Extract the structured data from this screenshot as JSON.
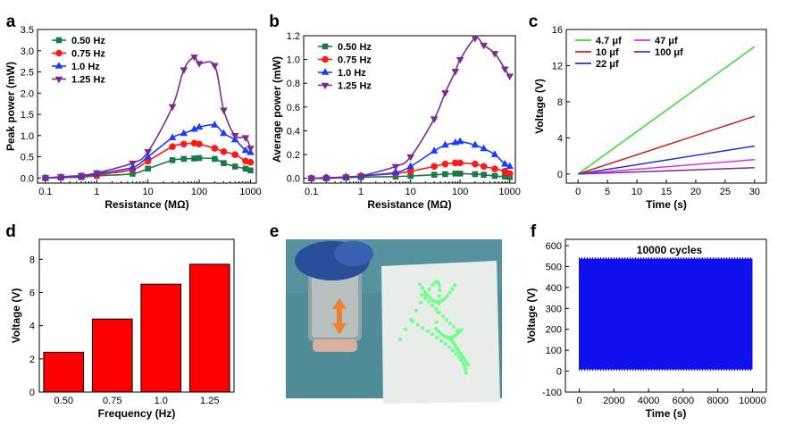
{
  "panel_labels": [
    "a",
    "b",
    "c",
    "d",
    "e",
    "f"
  ],
  "chart_data": [
    {
      "id": "a",
      "type": "line",
      "xlabel": "Resistance (MΩ)",
      "ylabel": "Peak power (mW)",
      "xscale": "log",
      "xlim": [
        0.07,
        1300
      ],
      "ylim": [
        -0.12,
        3.5
      ],
      "xticks": [
        0.1,
        1,
        10,
        100,
        1000
      ],
      "xtick_labels": [
        "0.1",
        "1",
        "10",
        "100",
        "1000"
      ],
      "yticks": [
        0.0,
        0.5,
        1.0,
        1.5,
        2.0,
        2.5,
        3.0,
        3.5
      ],
      "ytick_labels": [
        "0.0",
        "0.5",
        "1.0",
        "1.5",
        "2.0",
        "2.5",
        "3.0",
        "3.5"
      ],
      "legend_position": "top-left",
      "x": [
        0.1,
        0.2,
        0.5,
        1,
        5,
        10,
        30,
        50,
        80,
        100,
        200,
        300,
        500,
        800,
        1000
      ],
      "series": [
        {
          "name": "0.50 Hz",
          "color": "#1a7a4a",
          "marker": "square",
          "values": [
            0.0,
            0.01,
            0.02,
            0.05,
            0.1,
            0.22,
            0.42,
            0.45,
            0.46,
            0.47,
            0.45,
            0.35,
            0.27,
            0.22,
            0.18
          ]
        },
        {
          "name": "0.75 Hz",
          "color": "#ff1a1a",
          "marker": "circle",
          "values": [
            0.0,
            0.01,
            0.03,
            0.07,
            0.2,
            0.4,
            0.74,
            0.8,
            0.82,
            0.8,
            0.7,
            0.62,
            0.55,
            0.4,
            0.37
          ]
        },
        {
          "name": "1.0 Hz",
          "color": "#1a3cff",
          "marker": "triangle-up",
          "values": [
            0.0,
            0.02,
            0.04,
            0.1,
            0.25,
            0.5,
            0.95,
            1.05,
            1.15,
            1.2,
            1.25,
            1.05,
            0.9,
            0.65,
            0.6
          ]
        },
        {
          "name": "1.25 Hz",
          "color": "#7b2d8e",
          "marker": "triangle-down",
          "values": [
            0.0,
            0.03,
            0.06,
            0.12,
            0.35,
            0.62,
            1.68,
            2.55,
            2.85,
            2.7,
            2.65,
            1.6,
            1.0,
            0.95,
            0.7
          ]
        }
      ]
    },
    {
      "id": "b",
      "type": "line",
      "xlabel": "Resistance (MΩ)",
      "ylabel": "Average power (mW)",
      "xscale": "log",
      "xlim": [
        0.07,
        1300
      ],
      "ylim": [
        -0.04,
        1.2
      ],
      "xticks": [
        0.1,
        1,
        10,
        100,
        1000
      ],
      "xtick_labels": [
        "0.1",
        "1",
        "10",
        "100",
        "1000"
      ],
      "yticks": [
        0.0,
        0.2,
        0.4,
        0.6,
        0.8,
        1.0,
        1.2
      ],
      "ytick_labels": [
        "0.0",
        "0.2",
        "0.4",
        "0.6",
        "0.8",
        "1.0",
        "1.2"
      ],
      "legend_position": "top-left",
      "x": [
        0.1,
        0.2,
        0.5,
        1,
        5,
        10,
        30,
        50,
        80,
        100,
        200,
        300,
        500,
        800,
        1000
      ],
      "series": [
        {
          "name": "0.50 Hz",
          "color": "#1a7a4a",
          "marker": "square",
          "values": [
            0.0,
            0.0,
            0.005,
            0.01,
            0.015,
            0.02,
            0.03,
            0.035,
            0.04,
            0.04,
            0.035,
            0.03,
            0.02,
            0.015,
            0.01
          ]
        },
        {
          "name": "0.75 Hz",
          "color": "#ff1a1a",
          "marker": "circle",
          "values": [
            0.0,
            0.005,
            0.01,
            0.02,
            0.04,
            0.06,
            0.1,
            0.12,
            0.13,
            0.13,
            0.12,
            0.1,
            0.08,
            0.06,
            0.04
          ]
        },
        {
          "name": "1.0 Hz",
          "color": "#1a3cff",
          "marker": "triangle-up",
          "values": [
            0.0,
            0.005,
            0.01,
            0.02,
            0.05,
            0.1,
            0.23,
            0.28,
            0.3,
            0.31,
            0.28,
            0.25,
            0.2,
            0.12,
            0.1
          ]
        },
        {
          "name": "1.25 Hz",
          "color": "#7b2d8e",
          "marker": "triangle-down",
          "values": [
            0.0,
            0.0,
            0.01,
            0.02,
            0.1,
            0.18,
            0.5,
            0.72,
            0.9,
            1.0,
            1.18,
            1.12,
            1.05,
            0.92,
            0.86
          ]
        }
      ]
    },
    {
      "id": "c",
      "type": "line",
      "xlabel": "Time (s)",
      "ylabel": "Voltage (V)",
      "xlim": [
        -2,
        32
      ],
      "ylim": [
        -1,
        16
      ],
      "xticks": [
        0,
        5,
        10,
        15,
        20,
        25,
        30
      ],
      "xtick_labels": [
        "0",
        "5",
        "10",
        "15",
        "20",
        "25",
        "30"
      ],
      "yticks": [
        0,
        4,
        8,
        12,
        16
      ],
      "ytick_labels": [
        "0",
        "4",
        "8",
        "12",
        "16"
      ],
      "legend_position": "top-left",
      "x": [
        0,
        30
      ],
      "series": [
        {
          "name": "4.7 μf",
          "color": "#33dd33",
          "values": [
            0,
            14.1
          ]
        },
        {
          "name": "10 μf",
          "color": "#cc2222",
          "values": [
            0,
            6.4
          ]
        },
        {
          "name": "22 μf",
          "color": "#2233cc",
          "values": [
            0,
            3.1
          ]
        },
        {
          "name": "47 μf",
          "color": "#dd33dd",
          "values": [
            0,
            1.6
          ]
        },
        {
          "name": "100 μf",
          "color": "#7a2a9a",
          "values": [
            0,
            0.7
          ]
        }
      ]
    },
    {
      "id": "d",
      "type": "bar",
      "xlabel": "Frequency (Hz)",
      "ylabel": "Voltage (V)",
      "categories": [
        "0.50",
        "0.75",
        "1.0",
        "1.25"
      ],
      "values": [
        2.4,
        4.4,
        6.5,
        7.7
      ],
      "ylim": [
        0,
        9.2
      ],
      "yticks": [
        0,
        2,
        4,
        6,
        8
      ],
      "ytick_labels": [
        "0",
        "2",
        "4",
        "6",
        "8"
      ],
      "bar_color": "#ff0000"
    },
    {
      "id": "f",
      "type": "area",
      "xlabel": "Time (s)",
      "ylabel": "Voltage (V)",
      "annotation": "10000 cycles",
      "xlim": [
        -800,
        10800
      ],
      "ylim": [
        -100,
        630
      ],
      "xticks": [
        0,
        2000,
        4000,
        6000,
        8000,
        10000
      ],
      "xtick_labels": [
        "0",
        "2000",
        "4000",
        "6000",
        "8000",
        "10000"
      ],
      "yticks": [
        -100,
        0,
        100,
        200,
        300,
        400,
        500,
        600
      ],
      "ytick_labels": [
        "-100",
        "0",
        "100",
        "200",
        "300",
        "400",
        "500",
        "600"
      ],
      "x_range": [
        0,
        10000
      ],
      "lower": 8,
      "upper": 538,
      "color": "#1010ee"
    }
  ],
  "photo": {
    "id": "e",
    "background": "#4f8c98",
    "board_color": "#e9ede9",
    "led_color": "#6dff8a",
    "arrow_color": "#f08030"
  }
}
